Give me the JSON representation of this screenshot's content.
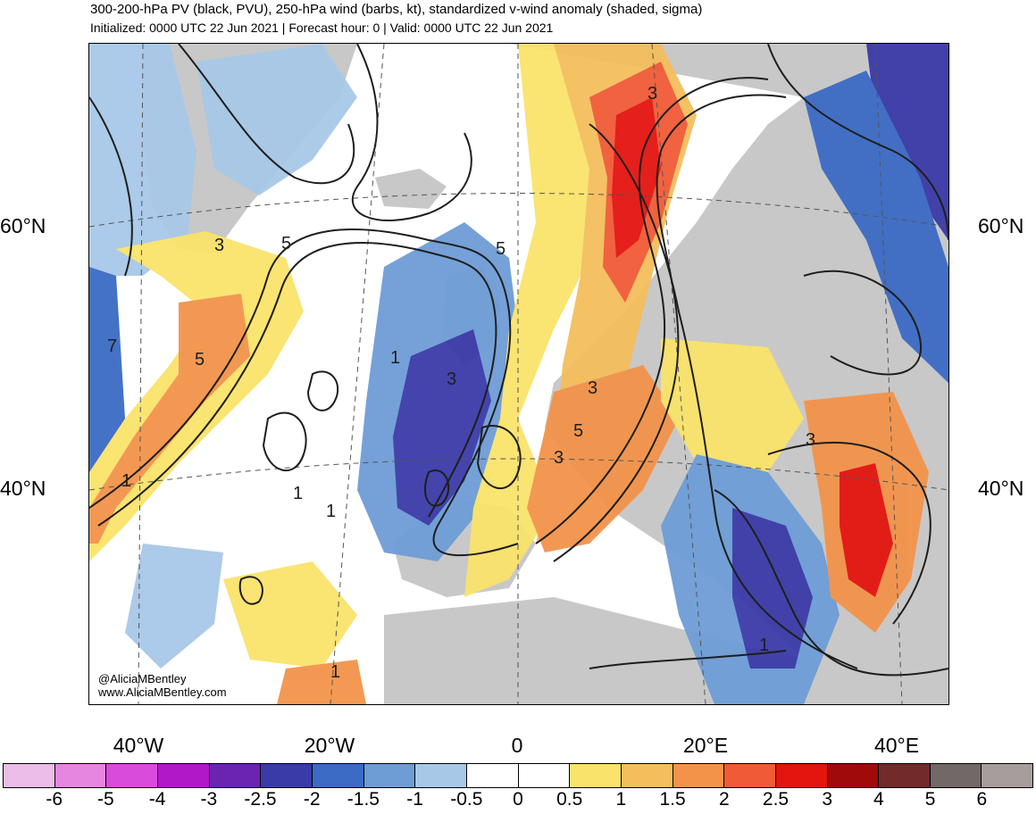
{
  "title": "300-200-hPa PV (black, PVU), 250-hPa wind (barbs, kt), standardized v-wind anomaly (shaded, sigma)",
  "subtitle": "Initialized: 0000 UTC 22 Jun 2021 | Forecast hour: 0 | Valid: 0000 UTC 22 Jun 2021",
  "latitude_labels": [
    "60°N",
    "40°N"
  ],
  "longitude_labels": [
    "40°W",
    "20°W",
    "0",
    "20°E",
    "40°E"
  ],
  "contour_labels": [
    "3",
    "5",
    "7",
    "3",
    "5",
    "5",
    "3",
    "3",
    "5",
    "3",
    "1",
    "1",
    "1",
    "1",
    "3",
    "1",
    "1"
  ],
  "credit": [
    "@AliciaMBentley",
    "www.AliciaMBentley.com"
  ],
  "colorbar": {
    "colors": [
      "#ebbde7",
      "#e686e1",
      "#d94bda",
      "#b018c8",
      "#6a24b0",
      "#3a3aa8",
      "#3b6bc4",
      "#6e9dd6",
      "#a8c8e8",
      "#ffffff",
      "#ffffff",
      "#fae36b",
      "#f4be5c",
      "#f3934a",
      "#f05a36",
      "#e4140f",
      "#a10a0a",
      "#722a2a",
      "#736868",
      "#a79d9d"
    ],
    "labels": [
      "-6",
      "-5",
      "-4",
      "-3",
      "-2.5",
      "-2",
      "-1.5",
      "-1",
      "-0.5",
      "0",
      "0.5",
      "1",
      "1.5",
      "2",
      "2.5",
      "3",
      "4",
      "5",
      "6"
    ]
  },
  "colors": {
    "land": "#c8c8c8",
    "contour": "#1e1e1e"
  }
}
